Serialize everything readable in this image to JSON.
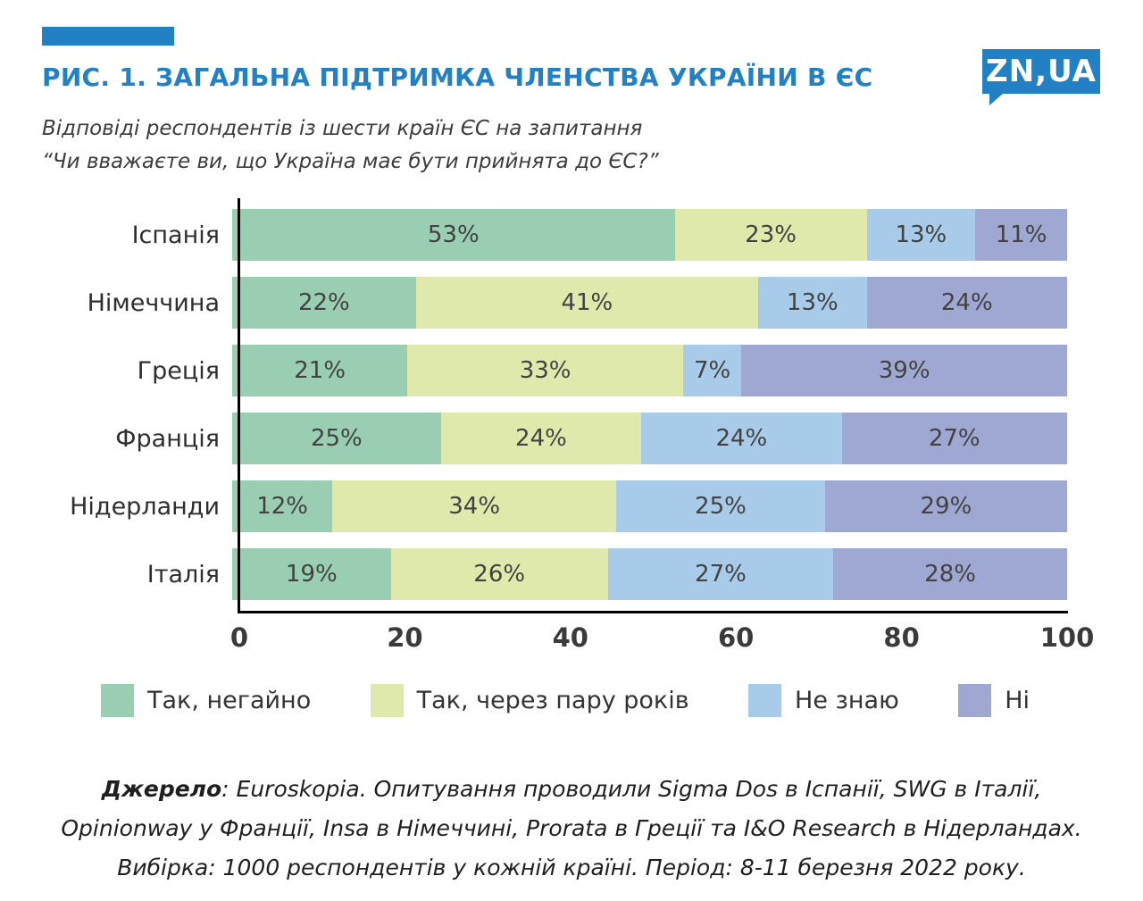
{
  "colors": {
    "accent": "#2280c4"
  },
  "header": {
    "title": "РИС. 1. ЗАГАЛЬНА ПІДТРИМКА ЧЛЕНСТВА УКРАЇНИ В ЄС",
    "logo": "ZN,UA",
    "subtitle_line1": "Відповіді респондентів із шести країн ЄС на запитання",
    "subtitle_line2": "“Чи вважаєте ви, що Україна має бути прийнята до ЄС?”"
  },
  "chart_data": {
    "type": "bar",
    "stacked": true,
    "orientation": "horizontal",
    "title": "РИС. 1. ЗАГАЛЬНА ПІДТРИМКА ЧЛЕНСТВА УКРАЇНИ В ЄС",
    "categories": [
      "Іспанія",
      "Німеччина",
      "Греція",
      "Франція",
      "Нідерланди",
      "Італія"
    ],
    "series": [
      {
        "name": "Так, негайно",
        "color": "#99ceb3",
        "values": [
          53,
          22,
          21,
          25,
          12,
          19
        ]
      },
      {
        "name": "Так, через пару років",
        "color": "#dfe9ab",
        "values": [
          23,
          41,
          33,
          24,
          34,
          26
        ]
      },
      {
        "name": "Не знаю",
        "color": "#a7cbe9",
        "values": [
          13,
          13,
          7,
          24,
          25,
          27
        ]
      },
      {
        "name": "Ні",
        "color": "#9ea8d3",
        "values": [
          11,
          24,
          39,
          27,
          29,
          28
        ]
      }
    ],
    "value_suffix": "%",
    "x_ticks": [
      "0",
      "20",
      "40",
      "60",
      "80",
      "100"
    ],
    "xlim": [
      0,
      100
    ],
    "grid": false,
    "legend_position": "bottom"
  },
  "footer": {
    "source_label": "Джерело",
    "line1_rest": ": Euroskopia. Опитування проводили Sigma Dos в Іспанії, SWG в Італії,",
    "line2": "Opinionway у Франції, Insa в Німеччині, Prorata в Греції та I&O Research в Нідерландах.",
    "line3": "Вибірка: 1000 респондентів у кожній країні. Період: 8-11 березня 2022 року."
  }
}
